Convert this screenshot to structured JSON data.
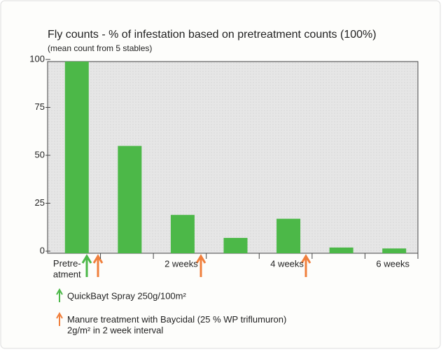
{
  "chart_data": {
    "type": "bar",
    "title": "Fly counts - % of infestation based on pretreatment counts (100%)",
    "subtitle": "(mean count from 5 stables)",
    "categories": [
      "Pretre-\natment",
      null,
      "2 weeks",
      null,
      "4 weeks",
      null,
      "6 weeks"
    ],
    "values": [
      100,
      56,
      20,
      8,
      18,
      3,
      2.5
    ],
    "color": "#4cb848",
    "ylim": [
      0,
      100
    ],
    "yticks": [
      0,
      25,
      50,
      75,
      100
    ],
    "annotations": [
      {
        "color": "#4cb848",
        "text": "QuickBayt Spray 250g/100m²"
      },
      {
        "color": "#f07f3c",
        "text": "Manure treatment with Baycidal (25 % WP triflumuron)\n2g/m² in 2 week interval"
      }
    ]
  }
}
